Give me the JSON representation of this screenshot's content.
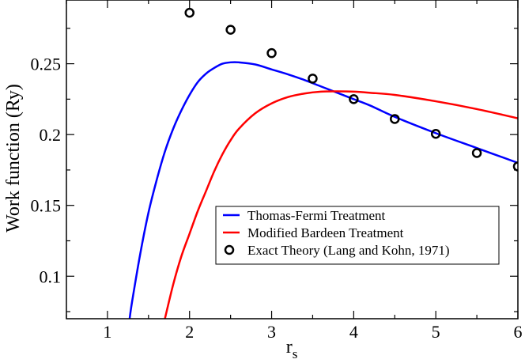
{
  "chart_data": {
    "type": "line",
    "xlabel": "r",
    "xlabel_subscript": "s",
    "ylabel": "Work function (Ry)",
    "xlim": [
      0.5,
      6
    ],
    "ylim": [
      0.07,
      0.295
    ],
    "xticks": [
      1,
      2,
      3,
      4,
      5,
      6
    ],
    "xtick_labels": [
      "1",
      "2",
      "3",
      "4",
      "5",
      "6"
    ],
    "x_minor_step": 0.5,
    "yticks": [
      0.1,
      0.15,
      0.2,
      0.25
    ],
    "ytick_labels": [
      "0.1",
      "0.15",
      "0.2",
      "0.25"
    ],
    "y_minor_step": 0.025,
    "grid": false,
    "legend_position": "lower-right",
    "series": [
      {
        "name": "Thomas-Fermi Treatment",
        "style": "line",
        "color": "#0000ff",
        "x": [
          1.27,
          1.3,
          1.4,
          1.5,
          1.6,
          1.7,
          1.8,
          1.9,
          2.0,
          2.1,
          2.2,
          2.3,
          2.4,
          2.5,
          2.6,
          2.8,
          3.0,
          3.2,
          3.4,
          3.6,
          3.8,
          4.0,
          4.2,
          4.5,
          5.0,
          5.5,
          6.0
        ],
        "y": [
          0.07,
          0.082,
          0.116,
          0.145,
          0.168,
          0.188,
          0.204,
          0.217,
          0.228,
          0.237,
          0.243,
          0.247,
          0.25,
          0.251,
          0.251,
          0.2495,
          0.246,
          0.2425,
          0.2385,
          0.234,
          0.2295,
          0.225,
          0.2205,
          0.2125,
          0.201,
          0.1905,
          0.18
        ]
      },
      {
        "name": "Modified Bardeen Treatment",
        "style": "line",
        "color": "#ff0000",
        "x": [
          1.7,
          1.8,
          1.9,
          2.0,
          2.1,
          2.2,
          2.3,
          2.4,
          2.5,
          2.6,
          2.8,
          3.0,
          3.2,
          3.4,
          3.6,
          3.8,
          4.0,
          4.2,
          4.5,
          5.0,
          5.5,
          6.0
        ],
        "y": [
          0.07,
          0.094,
          0.114,
          0.13,
          0.146,
          0.16,
          0.174,
          0.186,
          0.196,
          0.204,
          0.215,
          0.222,
          0.2265,
          0.229,
          0.2303,
          0.2305,
          0.2303,
          0.2295,
          0.228,
          0.2235,
          0.218,
          0.2115
        ]
      },
      {
        "name": "Exact Theory (Lang and Kohn, 1971)",
        "style": "markers",
        "marker": "circle",
        "color": "#000000",
        "x": [
          2.0,
          2.5,
          3.0,
          3.5,
          4.0,
          4.5,
          5.0,
          5.5,
          6.0
        ],
        "y": [
          0.286,
          0.274,
          0.2575,
          0.2395,
          0.225,
          0.211,
          0.2005,
          0.187,
          0.1775
        ]
      }
    ]
  }
}
